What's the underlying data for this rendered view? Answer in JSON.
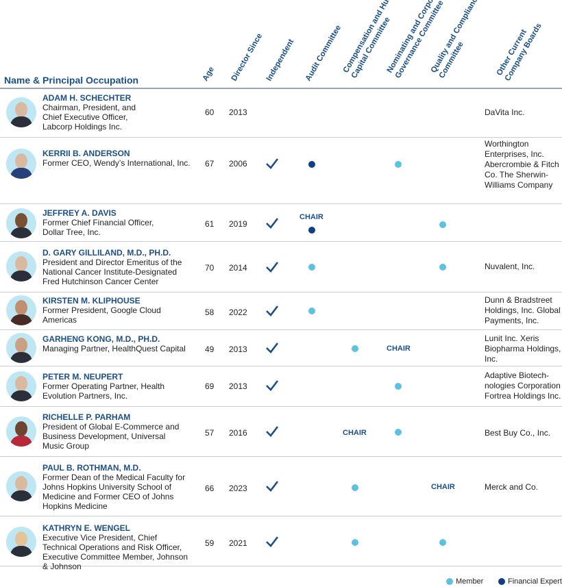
{
  "headers": {
    "name": "Name & Principal Occupation",
    "age": "Age",
    "director_since": "Director Since",
    "independent": "Independent",
    "audit": "Audit Committee",
    "comp_1": "Compensation and Human",
    "comp_2": "Capital Committee",
    "nom_1": "Nominating and Corporate",
    "nom_2": "Governance Committee",
    "qual_1": "Quality and Compliance",
    "qual_2": "Committee",
    "other_1": "Other Current",
    "other_2": "Company Boards"
  },
  "chair_label": "CHAIR",
  "directors": [
    {
      "name": "ADAM H. SCHECHTER",
      "occupation": "Chairman, President, and Chief Executive Officer, Labcorp Holdings Inc.",
      "age": "60",
      "since": "2013",
      "boards": "DaVita Inc."
    },
    {
      "name": "KERRII B. ANDERSON",
      "occupation": "Former CEO, Wendy’s International, Inc.",
      "age": "67",
      "since": "2006",
      "boards": "Worthington Enterprises, Inc. Abercrombie & Fitch Co. The Sherwin-Williams Company"
    },
    {
      "name": "JEFFREY A. DAVIS",
      "occupation": "Former Chief Financial Officer, Dollar Tree, Inc.",
      "age": "61",
      "since": "2019",
      "boards": ""
    },
    {
      "name": "D. GARY GILLILAND, M.D., PH.D.",
      "occupation": "President and Director Emeritus of the National Cancer Institute-Designated Fred Hutchinson Cancer Center",
      "age": "70",
      "since": "2014",
      "boards": "Nuvalent, Inc."
    },
    {
      "name": "KIRSTEN M. KLIPHOUSE",
      "occupation": "Former President, Google Cloud Americas",
      "age": "58",
      "since": "2022",
      "boards": "Dunn & Bradstreet Holdings, Inc. Global Payments, Inc."
    },
    {
      "name": "GARHENG KONG, M.D., PH.D.",
      "occupation": "Managing Partner, HealthQuest Capital",
      "age": "49",
      "since": "2013",
      "boards": "Lunit Inc. Xeris Biopharma Holdings, Inc."
    },
    {
      "name": "PETER M. NEUPERT",
      "occupation": "Former Operating Partner, Health Evolution Partners, Inc.",
      "age": "69",
      "since": "2013",
      "boards": "Adaptive Biotech-nologies Corporation Fortrea Holdings Inc."
    },
    {
      "name": "RICHELLE P. PARHAM",
      "occupation": "President of Global E-Commerce and Business Development, Universal Music Group",
      "age": "57",
      "since": "2016",
      "boards": "Best Buy Co., Inc."
    },
    {
      "name": "PAUL B. ROTHMAN, M.D.",
      "occupation": "Former Dean of the Medical Faculty for Johns Hopkins University School of Medicine and Former CEO of Johns Hopkins Medicine",
      "age": "66",
      "since": "2023",
      "boards": "Merck and Co."
    },
    {
      "name": "KATHRYN E. WENGEL",
      "occupation": "Executive Vice President, Chief Technical Operations and Risk Officer, Executive Committee Member, Johnson & Johnson",
      "age": "59",
      "since": "2021",
      "boards": ""
    }
  ],
  "legend": {
    "member": "Member",
    "expert": "Financial Expert"
  },
  "colors": {
    "member": "#5bc2e0",
    "expert": "#103f88",
    "header": "#1b4f8a"
  }
}
